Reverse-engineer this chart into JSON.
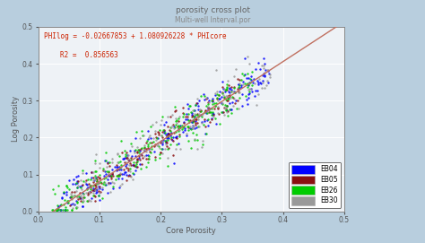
{
  "title": "porosity cross plot",
  "subtitle": "Multi-well Interval.por",
  "xlabel": "Core Porosity",
  "ylabel": "Log Porosity",
  "xlim": [
    0.0,
    0.5
  ],
  "ylim": [
    0.0,
    0.5
  ],
  "xticks": [
    0.0,
    0.1,
    0.2,
    0.3,
    0.4,
    0.5
  ],
  "yticks": [
    0.0,
    0.1,
    0.2,
    0.3,
    0.4,
    0.5
  ],
  "equation": "PHIlog = -0.02667853 + 1.080926228 * PHIcore",
  "r2": "R2 =  0.856563",
  "equation_color": "#cc2200",
  "background_color": "#b8cede",
  "plot_background": "#eef2f6",
  "grid_color": "#ffffff",
  "regression_line_color": "#c07060",
  "regression_slope": 1.080926228,
  "regression_intercept": -0.02667853,
  "series": [
    {
      "name": "EB04",
      "color": "#0000ff"
    },
    {
      "name": "EB05",
      "color": "#8b1010"
    },
    {
      "name": "EB26",
      "color": "#00cc00"
    },
    {
      "name": "EB30",
      "color": "#999999"
    }
  ],
  "n_points": [
    280,
    200,
    260,
    180
  ],
  "seed": 42,
  "series_x_ranges": [
    [
      0.03,
      0.38
    ],
    [
      0.05,
      0.33
    ],
    [
      0.02,
      0.35
    ],
    [
      0.05,
      0.38
    ]
  ],
  "series_spreads": [
    0.025,
    0.022,
    0.028,
    0.03
  ]
}
